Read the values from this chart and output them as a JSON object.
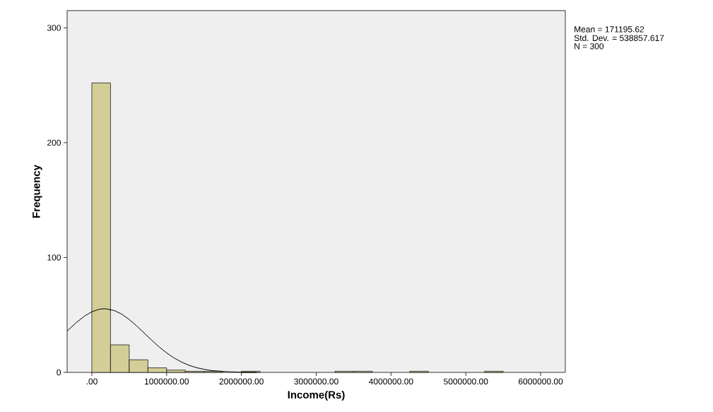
{
  "chart_data": {
    "type": "histogram",
    "xlabel": "Income(Rs)",
    "ylabel": "Frequency",
    "bins": [
      0,
      250000,
      500000,
      750000,
      1000000,
      1250000,
      1500000,
      1750000,
      2000000,
      2250000,
      2500000,
      2750000,
      3000000,
      3250000,
      3500000,
      3750000,
      4000000,
      4250000,
      4500000,
      4750000,
      5000000,
      5250000,
      5500000
    ],
    "values": [
      252,
      24,
      11,
      4,
      2,
      1,
      1,
      0,
      1,
      0,
      0,
      0,
      0,
      1,
      1,
      0,
      0,
      1,
      0,
      0,
      0,
      1
    ],
    "color": "#d3ce97",
    "series": [
      {
        "type": "line",
        "color": "#000000",
        "x": [
          -330000,
          -200000,
          -100000,
          0,
          100000,
          171196,
          300000,
          400000,
          500000,
          600000,
          700000,
          800000,
          900000,
          1000000,
          1100000,
          1200000,
          1300000,
          1400000,
          1500000,
          1600000,
          1800000,
          2000000,
          2200000
        ],
        "values": [
          36.0,
          43.8,
          48.9,
          52.8,
          55.0,
          55.5,
          53.9,
          50.7,
          46.1,
          40.4,
          34.3,
          28.1,
          22.2,
          17.0,
          12.6,
          9.0,
          6.2,
          4.1,
          2.7,
          1.6,
          0.6,
          0.2,
          0
        ]
      }
    ],
    "xlim": [
      -330000,
      6330000
    ],
    "ylim": [
      0,
      315
    ],
    "xticks": [
      {
        "value": 0,
        "label": ".00"
      },
      {
        "value": 1000000,
        "label": "1000000.00"
      },
      {
        "value": 2000000,
        "label": "2000000.00"
      },
      {
        "value": 3000000,
        "label": "3000000.00"
      },
      {
        "value": 4000000,
        "label": "4000000.00"
      },
      {
        "value": 5000000,
        "label": "5000000.00"
      },
      {
        "value": 6000000,
        "label": "6000000.00"
      }
    ],
    "yticks": [
      0,
      100,
      200,
      300
    ],
    "annotations": [
      "Mean = 171195.62",
      "Std. Dev. = 538857.617",
      "N = 300"
    ]
  }
}
